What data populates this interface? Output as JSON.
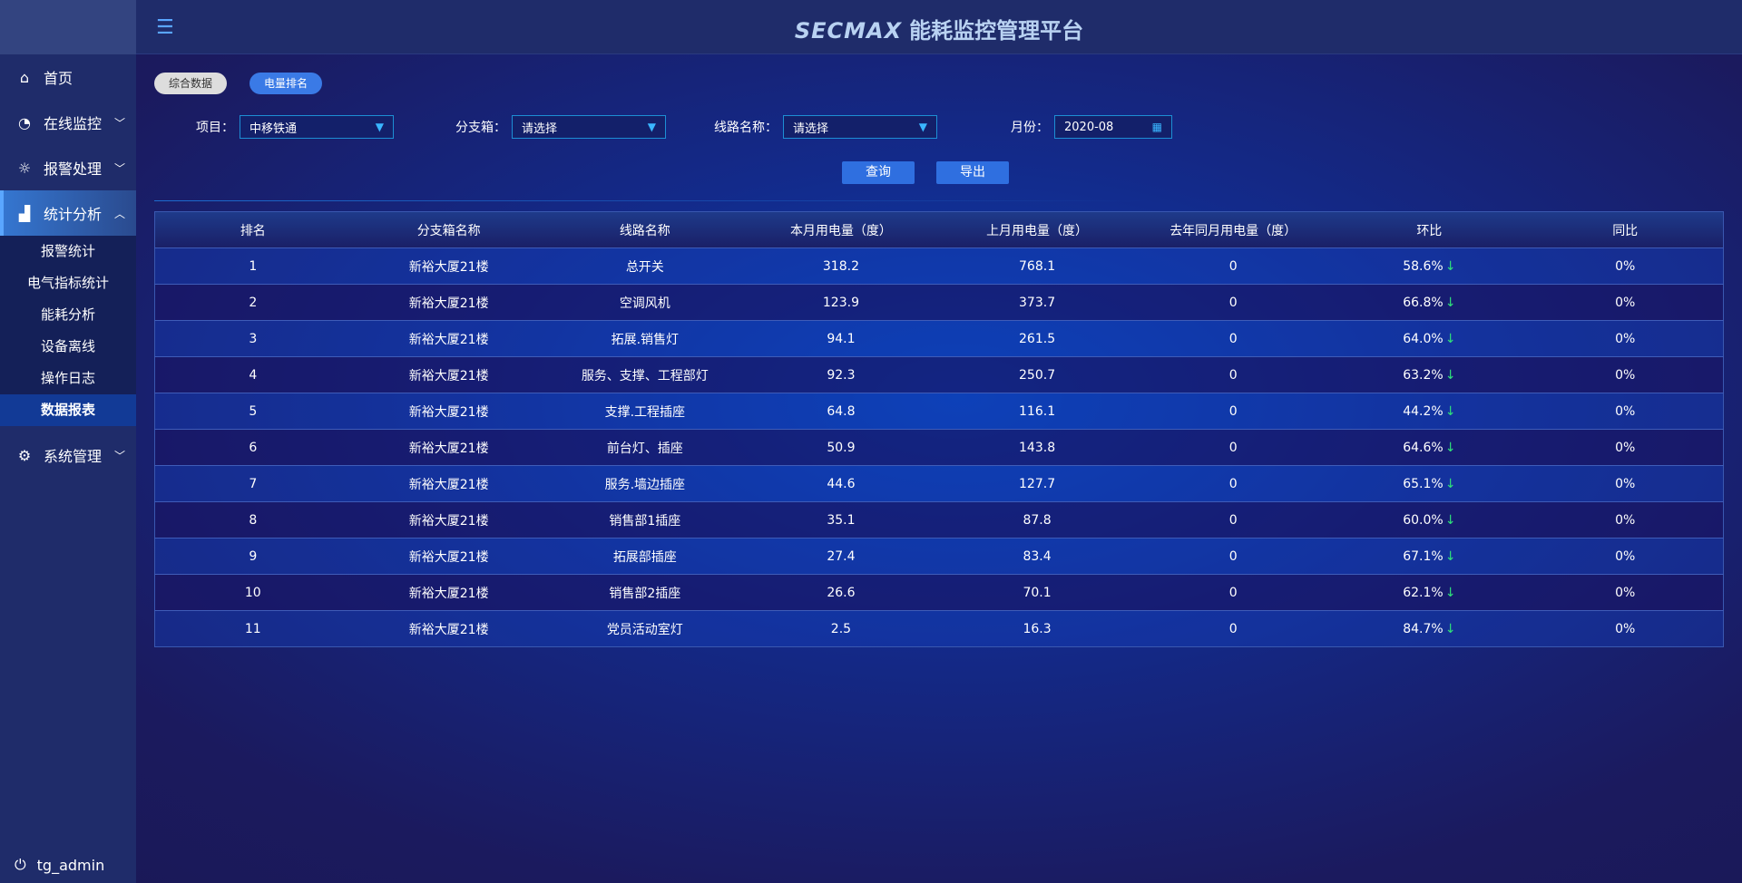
{
  "header": {
    "brand": "SECMAX",
    "title": "能耗监控管理平台"
  },
  "sidebar": {
    "items": [
      {
        "label": "首页",
        "icon": "home-icon"
      },
      {
        "label": "在线监控",
        "icon": "gauge-icon"
      },
      {
        "label": "报警处理",
        "icon": "alarm-light-icon"
      },
      {
        "label": "统计分析",
        "icon": "bar-chart-icon",
        "expanded": true
      },
      {
        "label": "系统管理",
        "icon": "gear-icon"
      }
    ],
    "sub_items": [
      "报警统计",
      "电气指标统计",
      "能耗分析",
      "设备离线",
      "操作日志",
      "数据报表"
    ],
    "active_sub": "数据报表",
    "user": "tg_admin"
  },
  "tabs": [
    "综合数据",
    "电量排名"
  ],
  "active_tab": "电量排名",
  "filters": {
    "project_label": "项目：",
    "project_value": "中移铁通",
    "branch_label": "分支箱：",
    "branch_value": "请选择",
    "line_label": "线路名称：",
    "line_value": "请选择",
    "month_label": "月份：",
    "month_value": "2020-08"
  },
  "buttons": {
    "query": "查询",
    "export": "导出"
  },
  "colors": {
    "accent": "#2f6fe0",
    "down_arrow": "#2ee07a"
  },
  "table": {
    "headers": [
      "排名",
      "分支箱名称",
      "线路名称",
      "本月用电量（度）",
      "上月用电量（度）",
      "去年同月用电量（度）",
      "环比",
      "同比"
    ],
    "rows": [
      [
        "1",
        "新裕大厦21楼",
        "总开关",
        "318.2",
        "768.1",
        "0",
        "58.6%",
        "0%"
      ],
      [
        "2",
        "新裕大厦21楼",
        "空调风机",
        "123.9",
        "373.7",
        "0",
        "66.8%",
        "0%"
      ],
      [
        "3",
        "新裕大厦21楼",
        "拓展.销售灯",
        "94.1",
        "261.5",
        "0",
        "64.0%",
        "0%"
      ],
      [
        "4",
        "新裕大厦21楼",
        "服务、支撑、工程部灯",
        "92.3",
        "250.7",
        "0",
        "63.2%",
        "0%"
      ],
      [
        "5",
        "新裕大厦21楼",
        "支撑.工程插座",
        "64.8",
        "116.1",
        "0",
        "44.2%",
        "0%"
      ],
      [
        "6",
        "新裕大厦21楼",
        "前台灯、插座",
        "50.9",
        "143.8",
        "0",
        "64.6%",
        "0%"
      ],
      [
        "7",
        "新裕大厦21楼",
        "服务.墙边插座",
        "44.6",
        "127.7",
        "0",
        "65.1%",
        "0%"
      ],
      [
        "8",
        "新裕大厦21楼",
        "销售部1插座",
        "35.1",
        "87.8",
        "0",
        "60.0%",
        "0%"
      ],
      [
        "9",
        "新裕大厦21楼",
        "拓展部插座",
        "27.4",
        "83.4",
        "0",
        "67.1%",
        "0%"
      ],
      [
        "10",
        "新裕大厦21楼",
        "销售部2插座",
        "26.6",
        "70.1",
        "0",
        "62.1%",
        "0%"
      ],
      [
        "11",
        "新裕大厦21楼",
        "党员活动室灯",
        "2.5",
        "16.3",
        "0",
        "84.7%",
        "0%"
      ]
    ]
  }
}
